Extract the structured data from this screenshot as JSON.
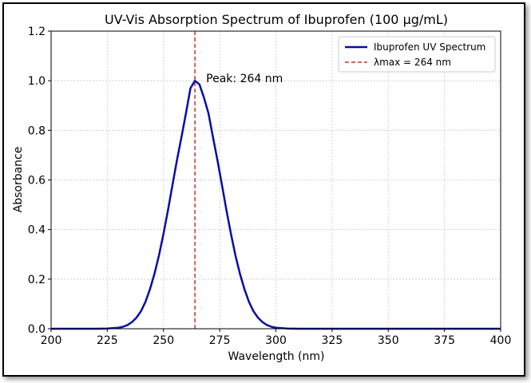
{
  "chart_data": {
    "type": "line",
    "title": "UV-Vis Absorption Spectrum of Ibuprofen (100 µg/mL)",
    "xlabel": "Wavelength (nm)",
    "ylabel": "Absorbance",
    "xlim": [
      200,
      400
    ],
    "ylim": [
      0,
      1.2
    ],
    "x_ticks": [
      "200",
      "225",
      "250",
      "275",
      "300",
      "325",
      "350",
      "375",
      "400"
    ],
    "y_ticks": [
      "0.0",
      "0.2",
      "0.4",
      "0.6",
      "0.8",
      "1.0",
      "1.2"
    ],
    "grid": true,
    "legend_position": "top-right",
    "series": [
      {
        "name": "Ibuprofen UV Spectrum",
        "color": "#0a0aa8",
        "x": [
          200,
          205,
          210,
          215,
          220,
          225,
          230,
          232,
          234,
          236,
          238,
          240,
          242,
          244,
          246,
          248,
          250,
          252,
          254,
          256,
          258,
          260,
          262,
          264,
          266,
          268,
          270,
          272,
          274,
          276,
          278,
          280,
          282,
          284,
          286,
          288,
          290,
          292,
          294,
          296,
          298,
          300,
          305,
          310,
          320,
          340,
          360,
          380,
          400
        ],
        "y": [
          0,
          0,
          0,
          0,
          0,
          0.001,
          0.004,
          0.008,
          0.015,
          0.027,
          0.045,
          0.071,
          0.109,
          0.16,
          0.222,
          0.296,
          0.383,
          0.478,
          0.58,
          0.68,
          0.773,
          0.869,
          0.97,
          1.0,
          0.985,
          0.932,
          0.869,
          0.773,
          0.68,
          0.58,
          0.478,
          0.383,
          0.296,
          0.222,
          0.16,
          0.109,
          0.071,
          0.045,
          0.027,
          0.015,
          0.008,
          0.004,
          0.001,
          0,
          0,
          0,
          0,
          0,
          0
        ]
      }
    ],
    "reference_line": {
      "name": "λmax = 264 nm",
      "x": 264,
      "color": "#c0392b",
      "style": "dashed"
    },
    "annotation": {
      "text": "Peak: 264 nm",
      "x": 264,
      "y": 1.0
    }
  }
}
